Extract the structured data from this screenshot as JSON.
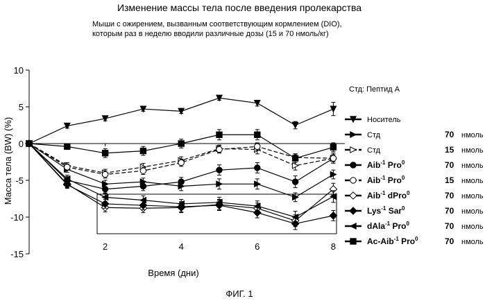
{
  "header": {
    "title": "Изменение массы тела после введения пролекарства",
    "subtitle_line1": "Мыши с ожирением, вызванным соответствующим кормлением (DIO),",
    "subtitle_line2": "которым раз в неделю вводили различные дозы (15 и 70 нмоль/кг)"
  },
  "std_note": "Стд: Пептид А",
  "figure_label": "ФИГ. 1",
  "chart_data": {
    "type": "line",
    "xlabel": "Время (дни)",
    "ylabel": "Масса тела (BW) (%)",
    "xlim": [
      0,
      8.3
    ],
    "ylim": [
      -15,
      10
    ],
    "xticks": [
      2,
      4,
      6,
      8
    ],
    "yticks": [
      10,
      5,
      0,
      -5,
      -10,
      -15
    ],
    "x": [
      0,
      1,
      2,
      3,
      4,
      5,
      6,
      7,
      8
    ],
    "grid": false,
    "legend_position": "right",
    "series": [
      {
        "name": "Носитель",
        "name_sup": "",
        "name_tail": "",
        "dose": "",
        "unit": "",
        "marker": "tri-down",
        "fill": "black",
        "dash": "solid",
        "values": [
          0,
          2.4,
          3.4,
          4.7,
          4.4,
          6.2,
          5.5,
          2.5,
          4.7
        ],
        "err": [
          0,
          0.3,
          0.3,
          0.3,
          0.3,
          0.3,
          0.4,
          0.5,
          0.9
        ]
      },
      {
        "name": "Стд",
        "name_sup": "",
        "name_tail": "",
        "dose": "70",
        "unit": "нмоль",
        "marker": "tri-right",
        "fill": "black",
        "dash": "solid",
        "values": [
          0,
          -3.5,
          -5.5,
          -5.2,
          -5.8,
          -5.5,
          -5.5,
          -7.3,
          -4.2
        ],
        "err": [
          0,
          0.4,
          0.5,
          0.5,
          0.6,
          0.7,
          0.7,
          0.6,
          0.6
        ]
      },
      {
        "name": "Стд",
        "name_sup": "",
        "name_tail": "",
        "dose": "15",
        "unit": "нмоль",
        "marker": "tri-right",
        "fill": "white",
        "dash": "dash",
        "values": [
          0,
          -3.0,
          -4.0,
          -3.2,
          -2.3,
          -0.7,
          -0.8,
          -3.0,
          -2.0
        ],
        "err": [
          0,
          0.4,
          0.5,
          0.5,
          0.5,
          0.5,
          0.6,
          0.6,
          0.5
        ]
      },
      {
        "name": "Aib",
        "name_sup": "-1",
        "name_tail": " Pro",
        "tail_sup": "0",
        "dose": "70",
        "unit": "нмоль",
        "marker": "circle",
        "fill": "black",
        "dash": "solid",
        "values": [
          0,
          -5.0,
          -6.2,
          -5.8,
          -5.2,
          -3.6,
          -3.3,
          -5.2,
          -2.0
        ],
        "err": [
          0,
          0.5,
          0.6,
          0.6,
          0.6,
          0.7,
          0.7,
          0.8,
          0.7
        ]
      },
      {
        "name": "Aib",
        "name_sup": "-1",
        "name_tail": " Pro",
        "tail_sup": "0",
        "dose": "15",
        "unit": "нмоль",
        "marker": "circle",
        "fill": "white",
        "dash": "dash",
        "values": [
          0,
          -3.2,
          -4.2,
          -3.7,
          -2.6,
          -0.8,
          -0.4,
          -1.9,
          -2.0
        ],
        "err": [
          0,
          0.4,
          0.5,
          0.5,
          0.5,
          0.5,
          0.5,
          0.5,
          0.5
        ]
      },
      {
        "name": "Aib",
        "name_sup": "-1",
        "name_tail": " dPro",
        "tail_sup": "0",
        "dose": "70",
        "unit": "нмоль",
        "marker": "diamond",
        "fill": "white",
        "dash": "solid",
        "values": [
          0,
          -5.5,
          -8.7,
          -8.8,
          -8.7,
          -8.3,
          -8.8,
          -10.5,
          -6.2
        ],
        "err": [
          0,
          0.5,
          0.6,
          0.6,
          0.7,
          0.7,
          0.7,
          0.8,
          0.8
        ]
      },
      {
        "name": "Lys",
        "name_sup": "-1",
        "name_tail": " Sar",
        "tail_sup": "0",
        "dose": "70",
        "unit": "нмоль",
        "marker": "diamond",
        "fill": "black",
        "dash": "solid",
        "values": [
          0,
          -5.6,
          -8.2,
          -8.4,
          -8.6,
          -8.4,
          -9.4,
          -10.9,
          -9.8
        ],
        "err": [
          0,
          0.5,
          0.6,
          0.6,
          0.7,
          0.7,
          0.7,
          0.8,
          0.7
        ]
      },
      {
        "name": "dAla",
        "name_sup": "-1",
        "name_tail": " Pro",
        "tail_sup": "0",
        "dose": "70",
        "unit": "нмоль",
        "marker": "tri-left",
        "fill": "black",
        "dash": "solid",
        "values": [
          0,
          -4.8,
          -7.3,
          -7.7,
          -8.2,
          -8.0,
          -8.5,
          -10.0,
          -7.2
        ],
        "err": [
          0,
          0.5,
          0.6,
          0.6,
          0.6,
          0.7,
          0.7,
          0.8,
          0.8
        ]
      },
      {
        "name": "Ac-Aib",
        "name_sup": "-1",
        "name_tail": " Pro",
        "tail_sup": "0",
        "dose": "70",
        "unit": "нмоль",
        "marker": "square",
        "fill": "black",
        "dash": "solid",
        "values": [
          0,
          -0.4,
          -1.3,
          -1.0,
          0.0,
          1.2,
          1.2,
          -2.0,
          -0.5
        ],
        "err": [
          0,
          0.4,
          0.6,
          0.6,
          0.6,
          0.7,
          0.7,
          0.6,
          0.6
        ]
      }
    ]
  }
}
